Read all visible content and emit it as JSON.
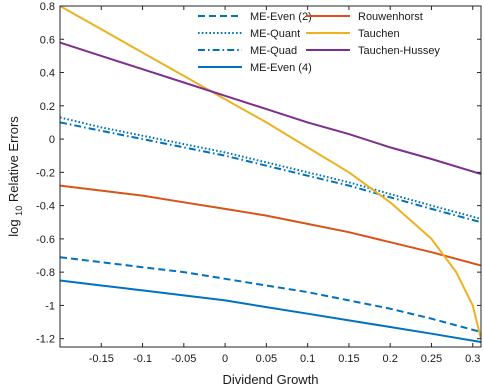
{
  "chart_data": {
    "type": "line",
    "xlabel": "Dividend Growth",
    "ylabel_main": "log",
    "ylabel_sub": "10",
    "ylabel_rest": " Relative Errors",
    "xlim": [
      -0.2,
      0.31
    ],
    "ylim": [
      -1.25,
      0.8
    ],
    "x_ticks": [
      -0.15,
      -0.1,
      -0.05,
      0,
      0.05,
      0.1,
      0.15,
      0.2,
      0.25,
      0.3
    ],
    "x_tick_labels": [
      "-0.15",
      "-0.1",
      "-0.05",
      "0",
      "0.05",
      "0.1",
      "0.15",
      "0.2",
      "0.25",
      "0.3"
    ],
    "y_ticks": [
      0.8,
      0.6,
      0.4,
      0.2,
      0,
      -0.2,
      -0.4,
      -0.6,
      -0.8,
      -1,
      -1.2
    ],
    "y_tick_labels": [
      "0.8",
      "0.6",
      "0.4",
      "0.2",
      "0",
      "-0.2",
      "-0.4",
      "-0.6",
      "-0.8",
      "-1",
      "-1.2"
    ],
    "grid": false,
    "legend_position": "top-right",
    "series": [
      {
        "name": "ME-Even (2)",
        "color": "#0072BD",
        "dash": "dashed",
        "x": [
          -0.2,
          -0.15,
          -0.1,
          -0.05,
          0,
          0.05,
          0.1,
          0.15,
          0.2,
          0.25,
          0.31
        ],
        "y": [
          -0.71,
          -0.74,
          -0.77,
          -0.8,
          -0.84,
          -0.88,
          -0.92,
          -0.97,
          -1.02,
          -1.08,
          -1.16
        ]
      },
      {
        "name": "ME-Quant",
        "color": "#0072BD",
        "dash": "dotted",
        "x": [
          -0.2,
          -0.15,
          -0.1,
          -0.05,
          0,
          0.05,
          0.1,
          0.15,
          0.2,
          0.25,
          0.31
        ],
        "y": [
          0.13,
          0.07,
          0.02,
          -0.03,
          -0.08,
          -0.14,
          -0.2,
          -0.26,
          -0.33,
          -0.4,
          -0.48
        ]
      },
      {
        "name": "ME-Quad",
        "color": "#0072BD",
        "dash": "dashdot",
        "x": [
          -0.2,
          -0.15,
          -0.1,
          -0.05,
          0,
          0.05,
          0.1,
          0.15,
          0.2,
          0.25,
          0.31
        ],
        "y": [
          0.1,
          0.05,
          0.0,
          -0.05,
          -0.1,
          -0.16,
          -0.22,
          -0.28,
          -0.35,
          -0.42,
          -0.5
        ]
      },
      {
        "name": "ME-Even (4)",
        "color": "#0072BD",
        "dash": "solid",
        "x": [
          -0.2,
          -0.15,
          -0.1,
          -0.05,
          0,
          0.05,
          0.1,
          0.15,
          0.2,
          0.25,
          0.31
        ],
        "y": [
          -0.85,
          -0.88,
          -0.91,
          -0.94,
          -0.97,
          -1.01,
          -1.05,
          -1.09,
          -1.13,
          -1.17,
          -1.22
        ]
      },
      {
        "name": "Rouwenhorst",
        "color": "#D95319",
        "dash": "solid",
        "x": [
          -0.2,
          -0.15,
          -0.1,
          -0.05,
          0,
          0.05,
          0.1,
          0.15,
          0.2,
          0.25,
          0.31
        ],
        "y": [
          -0.28,
          -0.31,
          -0.34,
          -0.38,
          -0.42,
          -0.46,
          -0.51,
          -0.56,
          -0.62,
          -0.68,
          -0.76
        ]
      },
      {
        "name": "Tauchen",
        "color": "#EDB120",
        "dash": "solid",
        "x": [
          -0.2,
          -0.15,
          -0.1,
          -0.05,
          0,
          0.05,
          0.1,
          0.15,
          0.2,
          0.25,
          0.28,
          0.3,
          0.31
        ],
        "y": [
          0.8,
          0.66,
          0.52,
          0.38,
          0.24,
          0.1,
          -0.05,
          -0.2,
          -0.38,
          -0.6,
          -0.8,
          -1.0,
          -1.2
        ]
      },
      {
        "name": "Tauchen-Hussey",
        "color": "#7E2F8E",
        "dash": "solid",
        "x": [
          -0.2,
          -0.15,
          -0.1,
          -0.05,
          0,
          0.05,
          0.1,
          0.15,
          0.2,
          0.25,
          0.31
        ],
        "y": [
          0.58,
          0.5,
          0.42,
          0.34,
          0.26,
          0.18,
          0.1,
          0.03,
          -0.05,
          -0.12,
          -0.21
        ]
      }
    ]
  }
}
